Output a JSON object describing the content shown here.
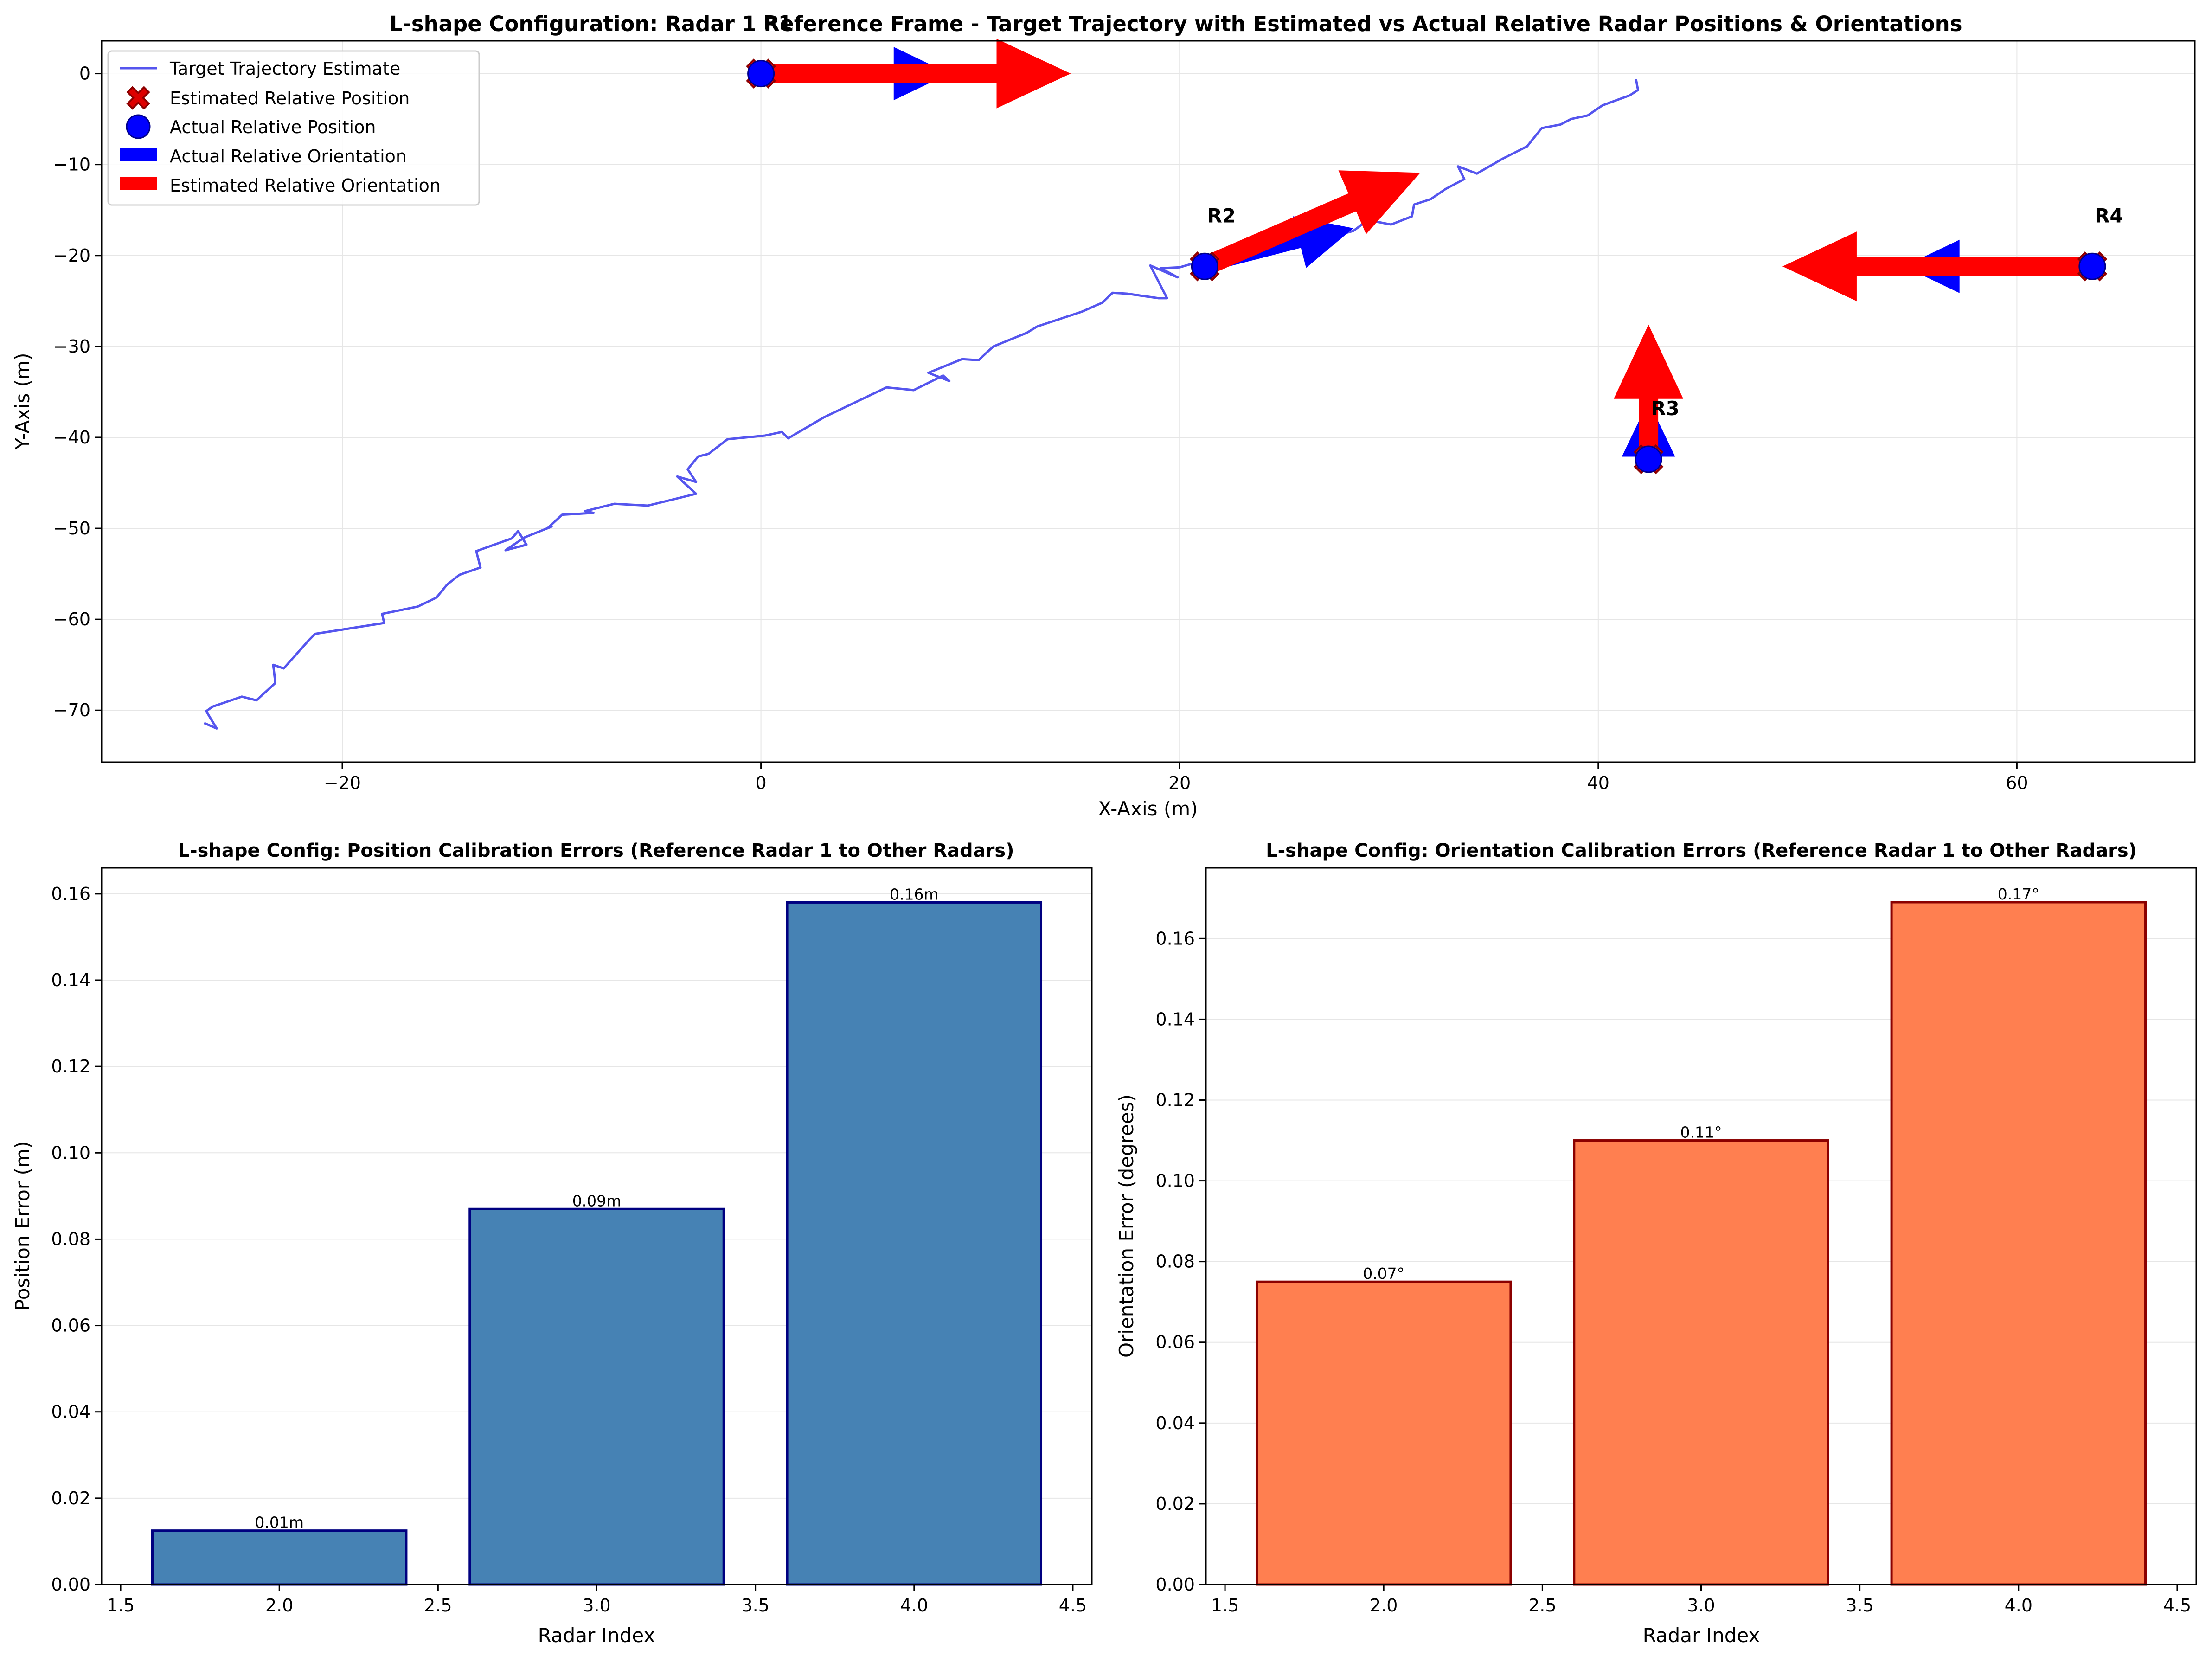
{
  "chart_data": [
    {
      "type": "line",
      "title": "L-shape Configuration: Radar 1 Reference Frame - Target Trajectory with Estimated vs Actual Relative Radar Positions & Orientations",
      "xlabel": "X-Axis (m)",
      "ylabel": "Y-Axis (m)",
      "xlim": [
        -31.5,
        68.5
      ],
      "ylim": [
        -75.7,
        3.6
      ],
      "xticks": [
        -20,
        0,
        20,
        40,
        60
      ],
      "yticks": [
        0,
        -10,
        -20,
        -30,
        -40,
        -50,
        -60,
        -70
      ],
      "xtick_labels": [
        "−20",
        "0",
        "20",
        "40",
        "60"
      ],
      "ytick_labels": [
        "0",
        "−10",
        "−20",
        "−30",
        "−40",
        "−50",
        "−60",
        "−70"
      ],
      "grid": true,
      "legend_position": "upper-left",
      "legend": [
        "Target Trajectory Estimate",
        "Estimated Relative Position",
        "Actual Relative Position",
        "Actual Relative Orientation",
        "Estimated Relative Orientation"
      ],
      "colors": {
        "trajectory": "#5555ee",
        "estimated": "#ff0000",
        "estimated_edge": "#8b0000",
        "actual": "#0000ff",
        "actual_edge": "#00008b"
      },
      "trajectory": {
        "x": [
          -26.6,
          -26.0,
          -26.5,
          -26.2,
          -24.8,
          -24.1,
          -23.2,
          -23.3,
          -22.8,
          -21.6,
          -21.3,
          -18.0,
          -18.1,
          -16.4,
          -15.5,
          -15.0,
          -14.4,
          -13.4,
          -13.6,
          -11.9,
          -11.6,
          -11.2,
          -12.2,
          -11.3,
          -10.0,
          -10.2,
          -9.5,
          -8.0,
          -8.4,
          -7.0,
          -5.4,
          -3.1,
          -4.0,
          -3.1,
          -3.5,
          -3.0,
          -2.5,
          -1.6,
          0.2,
          1.0,
          1.3,
          3.0,
          6.0,
          7.3,
          8.7,
          9.0,
          8.0,
          9.6,
          10.4,
          11.1,
          12.7,
          13.2,
          15.3,
          16.3,
          16.8,
          17.5,
          19.0,
          19.4,
          18.6,
          19.9,
          19.1,
          20.0,
          21.2,
          22.8,
          24.3,
          25.2,
          26.3,
          27.5,
          28.3,
          29.0,
          30.1,
          31.1,
          31.2,
          32.0,
          32.7,
          33.6,
          33.3,
          34.2,
          35.4,
          36.0,
          36.6,
          37.3,
          38.2,
          38.7,
          39.5,
          40.2,
          40.9,
          41.5,
          41.9,
          41.8
        ],
        "y": [
          -71.4,
          -72.0,
          -70.1,
          -69.6,
          -68.5,
          -68.9,
          -67.0,
          -65.0,
          -65.4,
          -62.3,
          -61.6,
          -60.4,
          -59.4,
          -58.6,
          -57.6,
          -56.2,
          -55.1,
          -54.3,
          -52.5,
          -51.1,
          -50.3,
          -51.8,
          -52.4,
          -51.0,
          -49.8,
          -50.0,
          -48.5,
          -48.3,
          -48.1,
          -47.3,
          -47.5,
          -46.2,
          -44.3,
          -44.9,
          -43.5,
          -42.1,
          -41.8,
          -40.2,
          -39.8,
          -39.4,
          -40.1,
          -37.8,
          -34.5,
          -34.8,
          -33.2,
          -33.8,
          -32.9,
          -31.4,
          -31.5,
          -30.0,
          -28.5,
          -27.8,
          -26.2,
          -25.2,
          -24.1,
          -24.2,
          -24.7,
          -24.7,
          -21.1,
          -22.4,
          -21.4,
          -21.3,
          -20.5,
          -19.8,
          -19.3,
          -18.9,
          -18.2,
          -17.8,
          -17.3,
          -16.1,
          -16.6,
          -15.7,
          -14.4,
          -13.8,
          -12.7,
          -11.6,
          -10.2,
          -11.0,
          -9.4,
          -8.7,
          -8.0,
          -6.0,
          -5.6,
          -5.0,
          -4.6,
          -3.5,
          -2.9,
          -2.4,
          -1.8,
          -0.6
        ]
      },
      "radars": [
        {
          "label": "R1",
          "x": 0.0,
          "y": 0.0,
          "actual_dx": 9.0,
          "actual_dy": 0.0,
          "estimated_dx": 14.8,
          "estimated_dy": 0.0
        },
        {
          "label": "R2",
          "x": 21.2,
          "y": -21.2,
          "actual_dx": 7.1,
          "actual_dy": 4.2,
          "estimated_dx": 10.3,
          "estimated_dy": 10.3
        },
        {
          "label": "R3",
          "x": 42.4,
          "y": -42.4,
          "actual_dx": 0.0,
          "actual_dy": 6.4,
          "estimated_dx": 0.0,
          "estimated_dy": 14.8
        },
        {
          "label": "R4",
          "x": 63.6,
          "y": -21.2,
          "actual_dx": -9.0,
          "actual_dy": 0.0,
          "estimated_dx": -14.8,
          "estimated_dy": 0.0
        }
      ]
    },
    {
      "type": "bar",
      "title": "L-shape Config: Position Calibration Errors (Reference Radar 1 to Other Radars)",
      "xlabel": "Radar Index",
      "ylabel": "Position Error (m)",
      "x": [
        2,
        3,
        4
      ],
      "values": [
        0.0125,
        0.087,
        0.158
      ],
      "data_labels": [
        "0.01m",
        "0.09m",
        "0.16m"
      ],
      "xlim": [
        1.44,
        4.56
      ],
      "ylim": [
        0,
        0.166
      ],
      "xticks": [
        1.5,
        2.0,
        2.5,
        3.0,
        3.5,
        4.0,
        4.5
      ],
      "xtick_labels": [
        "1.5",
        "2.0",
        "2.5",
        "3.0",
        "3.5",
        "4.0",
        "4.5"
      ],
      "yticks": [
        0,
        0.02,
        0.04,
        0.06,
        0.08,
        0.1,
        0.12,
        0.14,
        0.16
      ],
      "ytick_labels": [
        "0.00",
        "0.02",
        "0.04",
        "0.06",
        "0.08",
        "0.10",
        "0.12",
        "0.14",
        "0.16"
      ],
      "grid": "y",
      "color": "#4682b4",
      "edge_color": "#000080"
    },
    {
      "type": "bar",
      "title": "L-shape Config: Orientation Calibration Errors (Reference Radar 1 to Other Radars)",
      "xlabel": "Radar Index",
      "ylabel": "Orientation Error (degrees)",
      "x": [
        2,
        3,
        4
      ],
      "values": [
        0.075,
        0.11,
        0.169
      ],
      "data_labels": [
        "0.07°",
        "0.11°",
        "0.17°"
      ],
      "xlim": [
        1.44,
        4.56
      ],
      "ylim": [
        0,
        0.1775
      ],
      "xticks": [
        1.5,
        2.0,
        2.5,
        3.0,
        3.5,
        4.0,
        4.5
      ],
      "xtick_labels": [
        "1.5",
        "2.0",
        "2.5",
        "3.0",
        "3.5",
        "4.0",
        "4.5"
      ],
      "yticks": [
        0,
        0.02,
        0.04,
        0.06,
        0.08,
        0.1,
        0.12,
        0.14,
        0.16
      ],
      "ytick_labels": [
        "0.00",
        "0.02",
        "0.04",
        "0.06",
        "0.08",
        "0.10",
        "0.12",
        "0.14",
        "0.16"
      ],
      "grid": "y",
      "color": "#ff7f50",
      "edge_color": "#8b0000"
    }
  ]
}
